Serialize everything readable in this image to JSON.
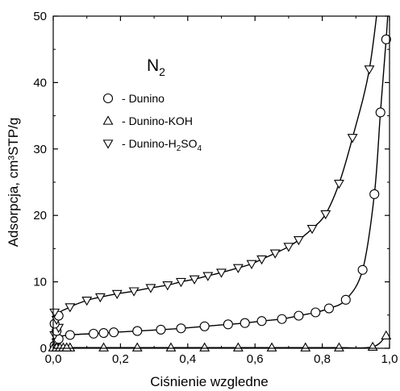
{
  "chart_data": {
    "type": "scatter",
    "annotation_label": "N",
    "annotation_subscript": "2",
    "xlabel": "Ciśnienie wzgledne",
    "ylabel": "Adsorpcja, cm³STP/g",
    "xlim": [
      0.0,
      1.0
    ],
    "ylim": [
      0,
      50
    ],
    "x_ticks": [
      "0,0",
      "0,2",
      "0,4",
      "0,6",
      "0,8",
      "1,0"
    ],
    "y_ticks": [
      "0",
      "10",
      "20",
      "30",
      "40",
      "50"
    ],
    "grid": false,
    "legend_position": "top-left",
    "series": [
      {
        "name": "Dunino",
        "legend_prefix": "-",
        "marker": "circle",
        "x": [
          0.05,
          0.12,
          0.15,
          0.18,
          0.25,
          0.32,
          0.38,
          0.45,
          0.52,
          0.57,
          0.62,
          0.68,
          0.73,
          0.78,
          0.82,
          0.87,
          0.92,
          0.955,
          0.973,
          0.99
        ],
        "y": [
          2.0,
          2.2,
          2.3,
          2.4,
          2.6,
          2.8,
          3.0,
          3.3,
          3.6,
          3.8,
          4.1,
          4.4,
          4.9,
          5.4,
          6.0,
          7.3,
          11.8,
          23.2,
          35.5,
          46.5
        ]
      },
      {
        "name": "Dunino-KOH",
        "legend_prefix": "-",
        "marker": "triangle-up",
        "x": [
          0.05,
          0.15,
          0.25,
          0.35,
          0.45,
          0.55,
          0.65,
          0.75,
          0.85,
          0.95,
          0.99
        ],
        "y": [
          0.1,
          0.1,
          0.1,
          0.1,
          0.1,
          0.1,
          0.1,
          0.1,
          0.1,
          0.2,
          1.9
        ]
      },
      {
        "name": "Dunino-H",
        "name_subscript": "2",
        "name_suffix": "SO",
        "name_suffix_subscript": "4",
        "legend_prefix": "-",
        "marker": "triangle-down",
        "x": [
          0.05,
          0.1,
          0.14,
          0.19,
          0.24,
          0.29,
          0.34,
          0.38,
          0.42,
          0.46,
          0.5,
          0.55,
          0.59,
          0.62,
          0.66,
          0.7,
          0.73,
          0.77,
          0.81,
          0.85,
          0.89,
          0.94
        ],
        "y": [
          6.2,
          7.2,
          7.7,
          8.2,
          8.6,
          9.1,
          9.5,
          10.0,
          10.4,
          10.9,
          11.4,
          12.1,
          12.7,
          13.4,
          14.3,
          15.3,
          16.3,
          18.0,
          20.2,
          24.8,
          31.7,
          42.0
        ]
      }
    ]
  }
}
